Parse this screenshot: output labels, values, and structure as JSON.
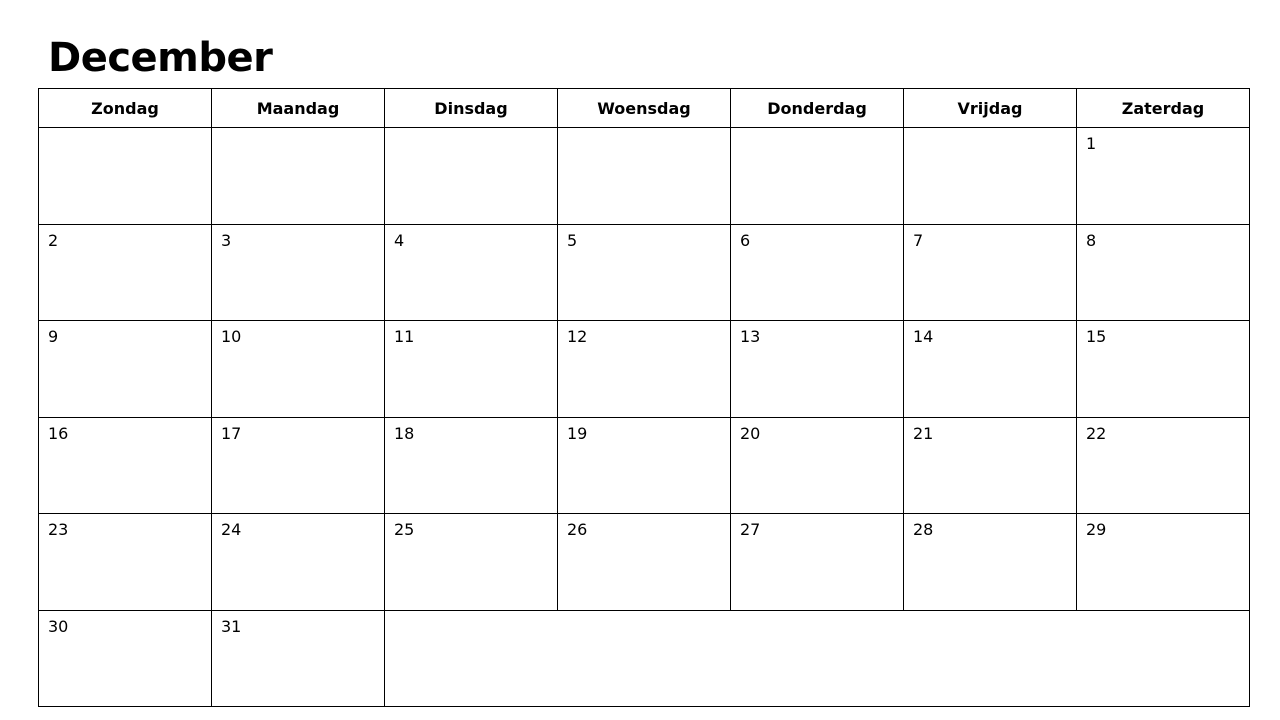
{
  "title": "December",
  "weekdays": [
    "Zondag",
    "Maandag",
    "Dinsdag",
    "Woensdag",
    "Donderdag",
    "Vrijdag",
    "Zaterdag"
  ],
  "weeks": [
    [
      "",
      "",
      "",
      "",
      "",
      "",
      "1"
    ],
    [
      "2",
      "3",
      "4",
      "5",
      "6",
      "7",
      "8"
    ],
    [
      "9",
      "10",
      "11",
      "12",
      "13",
      "14",
      "15"
    ],
    [
      "16",
      "17",
      "18",
      "19",
      "20",
      "21",
      "22"
    ],
    [
      "23",
      "24",
      "25",
      "26",
      "27",
      "28",
      "29"
    ],
    [
      "30",
      "31"
    ]
  ]
}
